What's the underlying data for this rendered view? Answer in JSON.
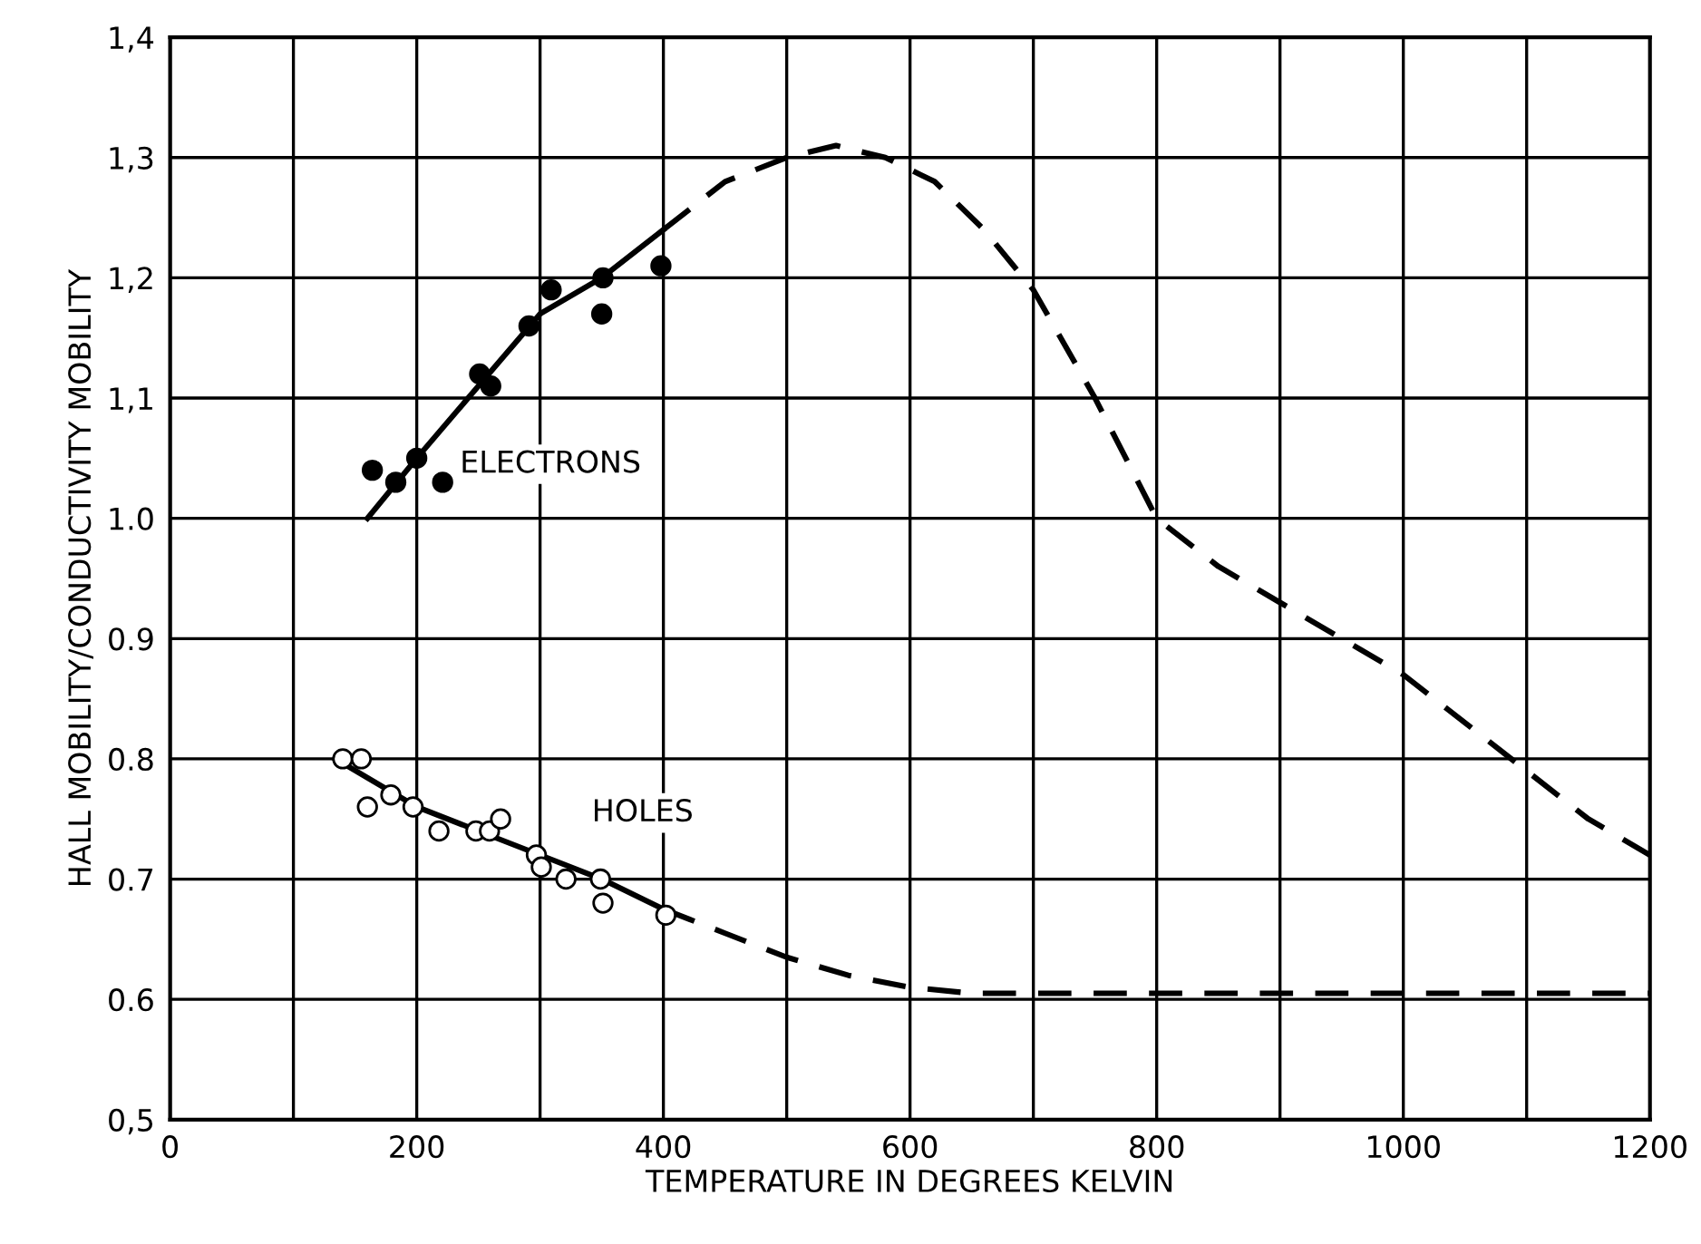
{
  "chart_data": {
    "type": "scatter",
    "xlabel": "TEMPERATURE IN DEGREES KELVIN",
    "ylabel": "HALL MOBILITY/CONDUCTIVITY MOBILITY",
    "xlim": [
      0,
      1200
    ],
    "xticks": [
      0,
      {
        "value": 100,
        "label": null
      },
      200,
      {
        "value": 300,
        "label": null
      },
      400,
      {
        "value": 500,
        "label": null
      },
      600,
      {
        "value": 700,
        "label": null
      },
      800,
      {
        "value": 900,
        "label": null
      },
      1000,
      {
        "value": 1100,
        "label": null
      },
      1200
    ],
    "ylim": [
      0.5,
      1.4
    ],
    "yticks": [
      {
        "value": 0.5,
        "label": "0,5"
      },
      0.6,
      0.7,
      0.8,
      0.9,
      {
        "value": 1.0,
        "label": "1.0"
      },
      {
        "value": 1.1,
        "label": "1,1"
      },
      {
        "value": 1.2,
        "label": "1,2"
      },
      {
        "value": 1.3,
        "label": "1,3"
      },
      {
        "value": 1.4,
        "label": "1,4"
      }
    ],
    "grid": true,
    "legend": false,
    "series": [
      {
        "name": "ELECTRONS",
        "marker": "circle",
        "color": "#000000",
        "x": [
          164,
          183,
          200,
          221,
          251,
          260,
          291,
          309,
          351,
          350,
          398
        ],
        "values": [
          1.04,
          1.03,
          1.05,
          1.03,
          1.12,
          1.11,
          1.16,
          1.19,
          1.2,
          1.17,
          1.21
        ]
      },
      {
        "name": "HOLES",
        "marker": "circle",
        "color": "#ffffff",
        "x": [
          140,
          155,
          160,
          179,
          197,
          218,
          248,
          259,
          268,
          297,
          301,
          321,
          349,
          351,
          402
        ],
        "values": [
          0.8,
          0.8,
          0.76,
          0.77,
          0.76,
          0.74,
          0.74,
          0.74,
          0.75,
          0.72,
          0.71,
          0.7,
          0.7,
          0.68,
          0.67
        ]
      },
      {
        "type": "line",
        "line_style": "solid",
        "marker": "none",
        "color": "#000000",
        "x": [
          160,
          200,
          250,
          300,
          350,
          400
        ],
        "values": [
          1.0,
          1.05,
          1.11,
          1.17,
          1.2,
          1.24
        ]
      },
      {
        "type": "line",
        "line_style": "dashed",
        "marker": "none",
        "color": "#000000",
        "x": [
          400,
          450,
          500,
          540,
          580,
          620,
          660,
          700,
          750,
          800,
          850,
          900,
          950,
          1000,
          1050,
          1100,
          1150,
          1200
        ],
        "values": [
          1.24,
          1.28,
          1.3,
          1.31,
          1.3,
          1.28,
          1.24,
          1.19,
          1.1,
          1.0,
          0.96,
          0.93,
          0.9,
          0.87,
          0.83,
          0.79,
          0.75,
          0.72
        ]
      },
      {
        "type": "line",
        "line_style": "solid",
        "marker": "none",
        "color": "#000000",
        "x": [
          134,
          200,
          250,
          300,
          350,
          400
        ],
        "values": [
          0.8,
          0.76,
          0.74,
          0.72,
          0.7,
          0.675
        ]
      },
      {
        "type": "line",
        "line_style": "dashed",
        "marker": "none",
        "color": "#000000",
        "x": [
          400,
          450,
          500,
          550,
          600,
          650,
          700,
          800,
          900,
          1000,
          1100,
          1200
        ],
        "values": [
          0.675,
          0.655,
          0.635,
          0.62,
          0.61,
          0.605,
          0.605,
          0.605,
          0.605,
          0.605,
          0.605,
          0.605
        ]
      }
    ]
  }
}
